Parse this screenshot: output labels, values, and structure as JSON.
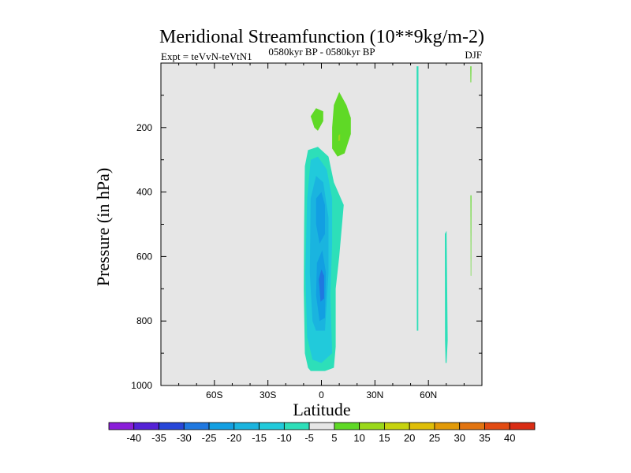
{
  "chart_data": {
    "type": "heatmap",
    "title": "Meridional Streamfunction (10**9kg/m-2)",
    "subtitle_left": "Expt = teVvN-teVtN1",
    "subtitle_center": "0580kyr BP - 0580kyr BP",
    "subtitle_right": "DJF",
    "xlabel": "Latitude",
    "ylabel": "Pressure (in hPa)",
    "xlim": [
      -90,
      90
    ],
    "ylim": [
      1000,
      0
    ],
    "x_ticks": [
      {
        "value": -60,
        "label": "60S"
      },
      {
        "value": -30,
        "label": "30S"
      },
      {
        "value": 0,
        "label": "0"
      },
      {
        "value": 30,
        "label": "30N"
      },
      {
        "value": 60,
        "label": "60N"
      }
    ],
    "y_ticks": [
      {
        "value": 200,
        "label": "200"
      },
      {
        "value": 400,
        "label": "400"
      },
      {
        "value": 600,
        "label": "600"
      },
      {
        "value": 800,
        "label": "800"
      },
      {
        "value": 1000,
        "label": "1000"
      }
    ],
    "background_color": "#e6e6e6",
    "colorbar": {
      "labels": [
        "-40",
        "-35",
        "-30",
        "-25",
        "-20",
        "-15",
        "-10",
        "-5",
        "5",
        "10",
        "15",
        "20",
        "25",
        "30",
        "35",
        "40"
      ],
      "colors": [
        "#8a1ed9",
        "#5522d6",
        "#2746d8",
        "#1f78e0",
        "#129fe2",
        "#1ab4df",
        "#21cadb",
        "#2ddfb9",
        "#e6e6e6",
        "#5fd926",
        "#9ad81a",
        "#c6d30e",
        "#dfbe08",
        "#e29a08",
        "#e27410",
        "#e24b12",
        "#d92c14"
      ]
    },
    "contours": [
      {
        "name": "neg-5",
        "color": "#2ddfb9",
        "points": [
          [
            -7.5,
            945
          ],
          [
            -6,
            955
          ],
          [
            2,
            955
          ],
          [
            7,
            945
          ],
          [
            8,
            880
          ],
          [
            8,
            700
          ],
          [
            10,
            600
          ],
          [
            12.5,
            440
          ],
          [
            7,
            370
          ],
          [
            4,
            290
          ],
          [
            -2,
            260
          ],
          [
            -7.5,
            270
          ],
          [
            -9.3,
            320
          ],
          [
            -9.7,
            500
          ],
          [
            -9.9,
            700
          ],
          [
            -9.3,
            900
          ]
        ]
      },
      {
        "name": "neg-10",
        "color": "#21cadb",
        "points": [
          [
            -5,
            920
          ],
          [
            0,
            930
          ],
          [
            6,
            900
          ],
          [
            5,
            720
          ],
          [
            6,
            560
          ],
          [
            6,
            420
          ],
          [
            3,
            330
          ],
          [
            -2,
            290
          ],
          [
            -6,
            300
          ],
          [
            -8,
            420
          ],
          [
            -9,
            650
          ],
          [
            -8,
            850
          ]
        ]
      },
      {
        "name": "neg-15",
        "color": "#1ab4df",
        "points": [
          [
            -3,
            830
          ],
          [
            2,
            830
          ],
          [
            4,
            650
          ],
          [
            4,
            480
          ],
          [
            1,
            370
          ],
          [
            -3,
            350
          ],
          [
            -6,
            420
          ],
          [
            -6.5,
            650
          ],
          [
            -5,
            800
          ]
        ]
      },
      {
        "name": "neg-20-upper",
        "color": "#129fe2",
        "points": [
          [
            -1,
            560
          ],
          [
            2,
            530
          ],
          [
            2,
            440
          ],
          [
            0,
            400
          ],
          [
            -3,
            420
          ],
          [
            -3,
            500
          ]
        ]
      },
      {
        "name": "neg-20-lower",
        "color": "#129fe2",
        "points": [
          [
            -1,
            800
          ],
          [
            2,
            790
          ],
          [
            2.5,
            650
          ],
          [
            0.5,
            580
          ],
          [
            -2.5,
            620
          ],
          [
            -3,
            720
          ]
        ]
      },
      {
        "name": "neg-25",
        "color": "#1f78e0",
        "points": [
          [
            -0.5,
            740
          ],
          [
            1.5,
            730
          ],
          [
            1.5,
            660
          ],
          [
            0,
            640
          ],
          [
            -1.5,
            670
          ]
        ]
      },
      {
        "name": "pos-5-small",
        "color": "#5fd926",
        "points": [
          [
            -6,
            165
          ],
          [
            -3,
            140
          ],
          [
            1,
            150
          ],
          [
            1,
            180
          ],
          [
            -2,
            210
          ],
          [
            -4,
            200
          ]
        ]
      },
      {
        "name": "pos-5-main",
        "color": "#5fd926",
        "points": [
          [
            6,
            265
          ],
          [
            9,
            290
          ],
          [
            13,
            280
          ],
          [
            16.5,
            220
          ],
          [
            16.5,
            170
          ],
          [
            14,
            130
          ],
          [
            10,
            90
          ],
          [
            7,
            130
          ],
          [
            6,
            200
          ]
        ]
      },
      {
        "name": "pos-10-speck",
        "color": "#9ad81a",
        "points": [
          [
            9.5,
            225
          ],
          [
            10.5,
            220
          ],
          [
            10.5,
            240
          ],
          [
            9.5,
            242
          ]
        ]
      },
      {
        "name": "stripe-54n",
        "color": "#2ddfb9",
        "points": [
          [
            53.4,
            10
          ],
          [
            54.4,
            10
          ],
          [
            54.3,
            830
          ],
          [
            53.5,
            830
          ]
        ]
      },
      {
        "name": "stripe-70n",
        "color": "#2ddfb9",
        "points": [
          [
            69.2,
            530
          ],
          [
            70.2,
            520
          ],
          [
            70.8,
            860
          ],
          [
            70.2,
            930
          ],
          [
            69.6,
            930
          ],
          [
            69.3,
            860
          ]
        ]
      },
      {
        "name": "stripe-84n-upper",
        "color": "#5fd926",
        "points": [
          [
            83.5,
            10
          ],
          [
            84.1,
            10
          ],
          [
            84,
            60
          ],
          [
            83.6,
            60
          ]
        ]
      },
      {
        "name": "stripe-84n-lower",
        "color": "#5fd926",
        "points": [
          [
            83.6,
            410
          ],
          [
            84.1,
            410
          ],
          [
            84,
            660
          ],
          [
            83.7,
            660
          ]
        ]
      }
    ]
  }
}
